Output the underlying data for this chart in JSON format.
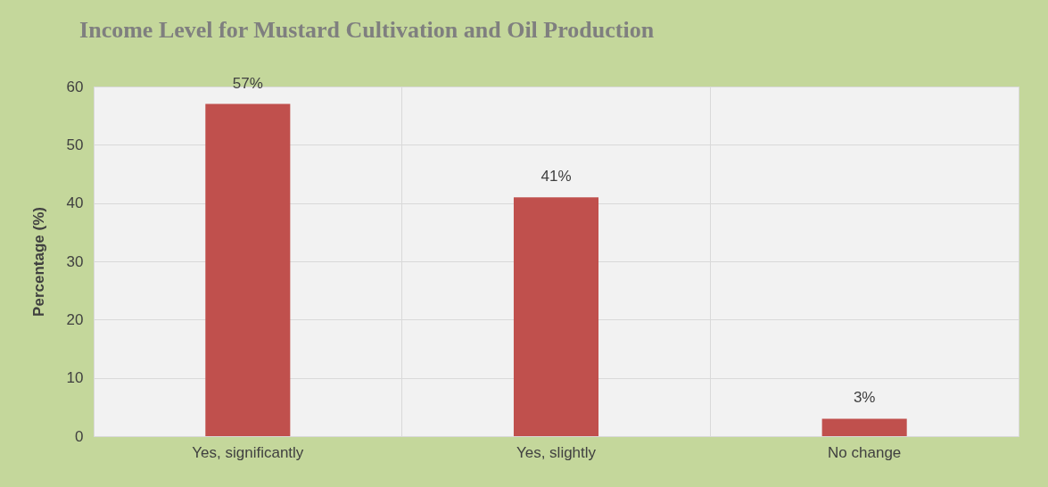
{
  "chart_data": {
    "type": "bar",
    "title": "Income Level for Mustard Cultivation and Oil Production",
    "ylabel": "Percentage (%)",
    "categories": [
      "Yes, significantly",
      "Yes, slightly",
      "No change"
    ],
    "values": [
      57,
      41,
      3
    ],
    "value_labels": [
      "57%",
      "41%",
      "3%"
    ],
    "color": "#c0504d",
    "ylim": [
      0,
      60
    ],
    "yticks": [
      0,
      10,
      20,
      30,
      40,
      50,
      60
    ],
    "grid": true
  }
}
